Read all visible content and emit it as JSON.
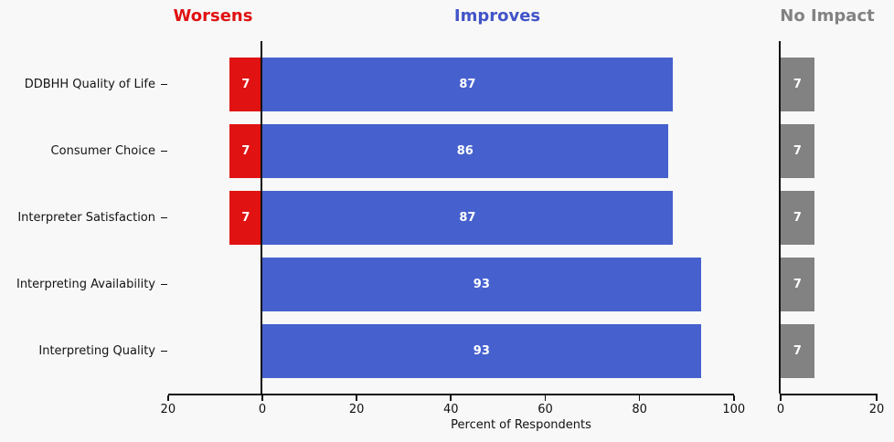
{
  "titles": {
    "worsens": "Worsens",
    "improves": "Improves",
    "no_impact": "No Impact"
  },
  "colors": {
    "background": "#f8f8f8",
    "worsens_bar": "#e01212",
    "worsens_title": "#e01212",
    "improves_bar": "#4661ce",
    "improves_title": "#4254c8",
    "no_impact_bar": "#828282",
    "no_impact_title": "#828282",
    "axis": "#111111",
    "bar_label_text": "#ffffff"
  },
  "chart_data": {
    "type": "bar",
    "orientation": "horizontal",
    "xlabel": "Percent of Respondents",
    "categories": [
      "DDBHH Quality of Life",
      "Consumer Choice",
      "Interpreter Satisfaction",
      "Interpreting Availability",
      "Interpreting Quality"
    ],
    "series": [
      {
        "name": "Worsens",
        "color_key": "worsens_bar",
        "values": [
          7,
          7,
          7,
          0,
          0
        ]
      },
      {
        "name": "Improves",
        "color_key": "improves_bar",
        "values": [
          87,
          86,
          87,
          93,
          93
        ]
      },
      {
        "name": "No Impact",
        "color_key": "no_impact_bar",
        "values": [
          7,
          7,
          7,
          7,
          7
        ]
      }
    ],
    "bar_value_labels_visible": true,
    "main_axis": {
      "range": [
        -20,
        100
      ],
      "ticks": [
        -20,
        0,
        20,
        40,
        60,
        80,
        100
      ],
      "tick_labels": [
        "20",
        "0",
        "20",
        "40",
        "60",
        "80",
        "100"
      ]
    },
    "no_impact_axis": {
      "range": [
        0,
        20
      ],
      "ticks": [
        0,
        20
      ],
      "tick_labels": [
        "0",
        "20"
      ]
    },
    "grid": false,
    "legend": "none (panel headers act as series labels)"
  }
}
